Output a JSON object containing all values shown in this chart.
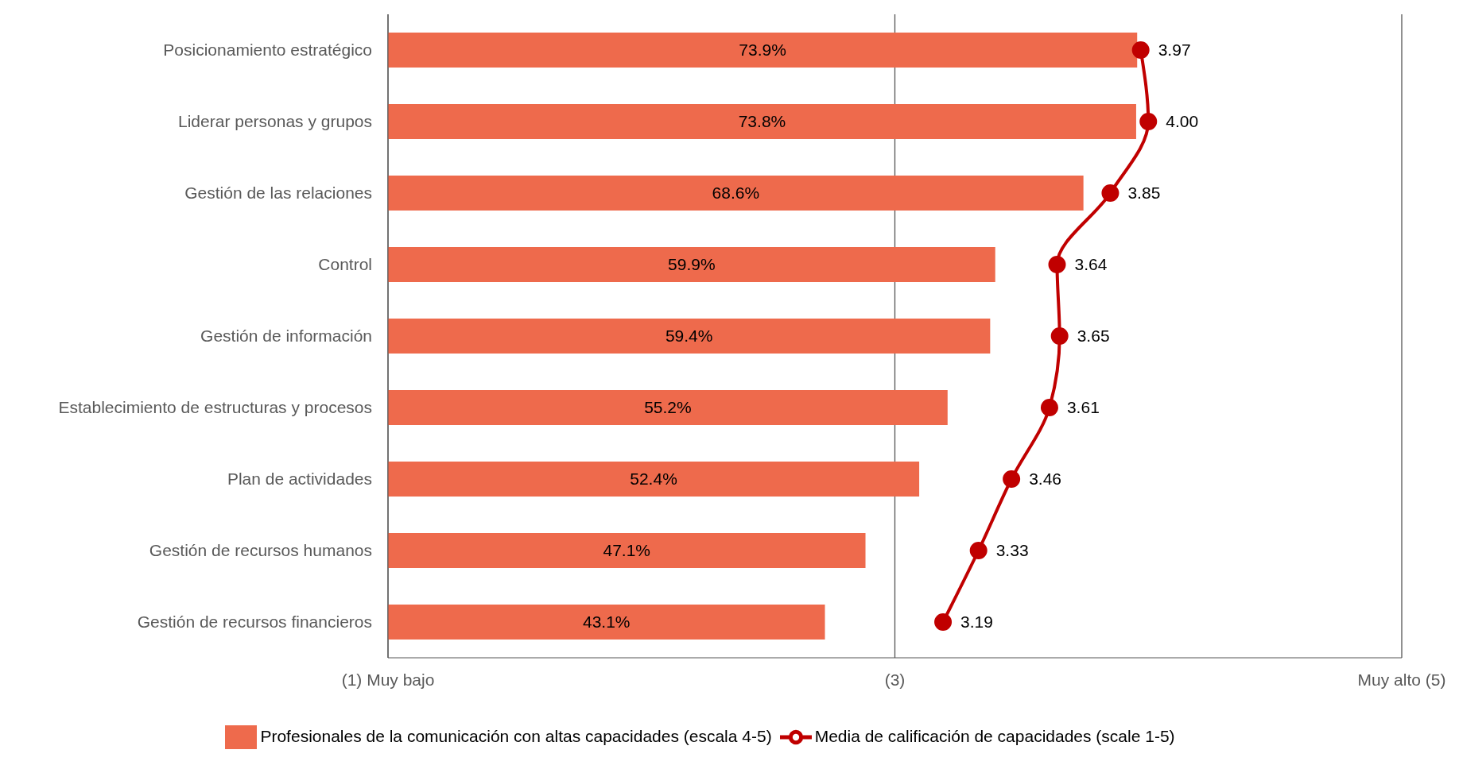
{
  "chart_data": {
    "type": "bar",
    "orientation": "horizontal",
    "categories": [
      "Posicionamiento estratégico",
      "Liderar personas y grupos",
      "Gestión de las relaciones",
      "Control",
      "Gestión de información",
      "Establecimiento de estructuras y procesos",
      "Plan de actividades",
      "Gestión de recursos humanos",
      "Gestión de recursos financieros"
    ],
    "series": [
      {
        "name": "Profesionales de la comunicación con altas capacidades (escala 4-5)",
        "color": "#ee6a4c",
        "values": [
          73.9,
          73.8,
          68.6,
          59.9,
          59.4,
          55.2,
          52.4,
          47.1,
          43.1
        ],
        "value_labels": [
          "73.9%",
          "73.8%",
          "68.6%",
          "59.9%",
          "59.4%",
          "55.2%",
          "52.4%",
          "47.1%",
          "43.1%"
        ]
      },
      {
        "name": "Media de calificación de capacidades (scale 1-5)",
        "type": "line",
        "axis": "x2",
        "color": "#c00000",
        "marker": "circle",
        "values": [
          3.97,
          4.0,
          3.85,
          3.64,
          3.65,
          3.61,
          3.46,
          3.33,
          3.19
        ],
        "value_labels": [
          "3.97",
          "4.00",
          "3.85",
          "3.64",
          "3.65",
          "3.61",
          "3.46",
          "3.33",
          "3.19"
        ]
      }
    ],
    "xlim": [
      0,
      100
    ],
    "x2lim": [
      1,
      5
    ],
    "x2ticks": [
      {
        "value": 1,
        "label": "(1) Muy bajo"
      },
      {
        "value": 3,
        "label": "(3)"
      },
      {
        "value": 5,
        "label": "Muy alto (5)"
      }
    ],
    "grid": "x",
    "legend": "bottom"
  }
}
